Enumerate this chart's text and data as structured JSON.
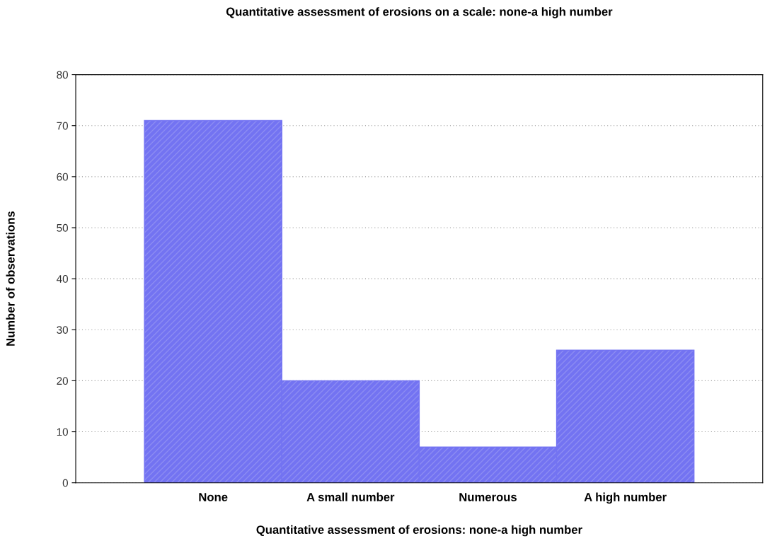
{
  "chart_data": {
    "type": "bar",
    "title": "Quantitative assessment of erosions on a scale: none-a high number",
    "xlabel": "Quantitative assessment of erosions: none-a high number",
    "ylabel": "Number of observations",
    "categories": [
      "None",
      "A small number",
      "Numerous",
      "A high number"
    ],
    "values": [
      71,
      20,
      7,
      26
    ],
    "color": "#7373f2",
    "ylim": [
      0,
      80
    ],
    "yticks": [
      0,
      10,
      20,
      30,
      40,
      50,
      60,
      70,
      80
    ],
    "grid": "y"
  }
}
